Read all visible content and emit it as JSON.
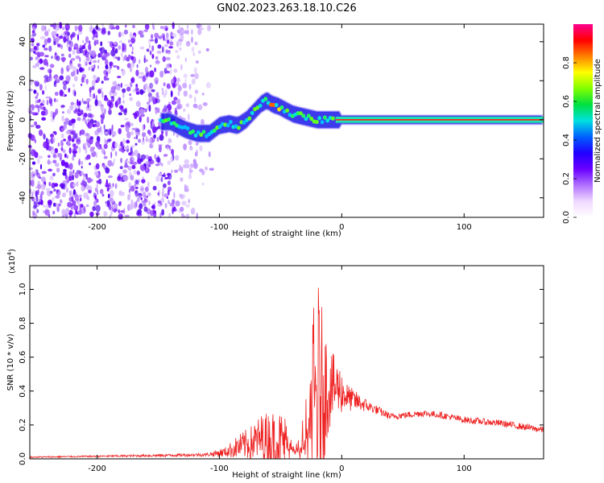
{
  "title": "GN02.2023.263.18.10.C26",
  "chart_data": [
    {
      "type": "heatmap",
      "xlabel": "Height of straight line (km)",
      "ylabel": "Frequency (Hz)",
      "xlim": [
        -255,
        165
      ],
      "ylim": [
        -50,
        49
      ],
      "xticks": [
        -200,
        -100,
        0,
        100
      ],
      "yticks": [
        -40,
        -20,
        0,
        20,
        40
      ],
      "ridge": {
        "x": [
          -148,
          -140,
          -128,
          -118,
          -108,
          -100,
          -92,
          -85,
          -78,
          -72,
          -66,
          -61,
          -57,
          -52,
          -46,
          -40,
          -34,
          -27,
          -20,
          -13,
          -7,
          0,
          50,
          100,
          165
        ],
        "y": [
          -1,
          -1,
          -5,
          -7,
          -7,
          -3,
          -2,
          -3,
          0,
          4,
          8,
          10,
          8,
          7,
          5,
          3,
          2,
          1,
          0,
          0,
          0,
          0,
          0,
          0,
          0
        ]
      },
      "colorbar": {
        "label": "Normalized spectral amplitude",
        "ticks": [
          0.0,
          0.2,
          0.4,
          0.6,
          0.8
        ],
        "range": [
          0,
          1
        ],
        "colors": [
          "#ffffff",
          "#f0d8ff",
          "#b070ff",
          "#6a00ff",
          "#2000ff",
          "#0060ff",
          "#00e0e0",
          "#00e040",
          "#80ff00",
          "#ffff00",
          "#ff8000",
          "#ff0000",
          "#ff0090"
        ]
      }
    },
    {
      "type": "line",
      "xlabel": "Height of straight line (km)",
      "ylabel": "SNR (10 * v/v)",
      "scale_note": "(x10",
      "scale_exp": "4",
      "xlim": [
        -255,
        165
      ],
      "ylim": [
        0,
        1.14
      ],
      "xticks": [
        -200,
        -100,
        0,
        100
      ],
      "yticks": [
        0.0,
        0.2,
        0.4,
        0.6,
        0.8,
        1.0
      ],
      "line_color": "#ee2222",
      "envelope": {
        "x": [
          -255,
          -200,
          -150,
          -110,
          -95,
          -85,
          -75,
          -65,
          -55,
          -47,
          -40,
          -32,
          -27,
          -24,
          -20,
          -17,
          -13,
          -9,
          -3,
          5,
          15,
          25,
          40,
          55,
          65,
          80,
          100,
          130,
          165
        ],
        "base": [
          0.01,
          0.015,
          0.02,
          0.025,
          0.04,
          0.07,
          0.09,
          0.12,
          0.11,
          0.1,
          0.05,
          0.07,
          0.18,
          0.28,
          0.35,
          0.38,
          0.42,
          0.42,
          0.42,
          0.36,
          0.33,
          0.3,
          0.25,
          0.26,
          0.27,
          0.26,
          0.23,
          0.21,
          0.17
        ],
        "amp": [
          0.004,
          0.005,
          0.008,
          0.01,
          0.03,
          0.07,
          0.1,
          0.15,
          0.18,
          0.18,
          0.03,
          0.18,
          0.3,
          0.55,
          0.75,
          0.55,
          0.35,
          0.22,
          0.16,
          0.08,
          0.05,
          0.03,
          0.02,
          0.02,
          0.02,
          0.02,
          0.02,
          0.02,
          0.02
        ]
      }
    }
  ]
}
